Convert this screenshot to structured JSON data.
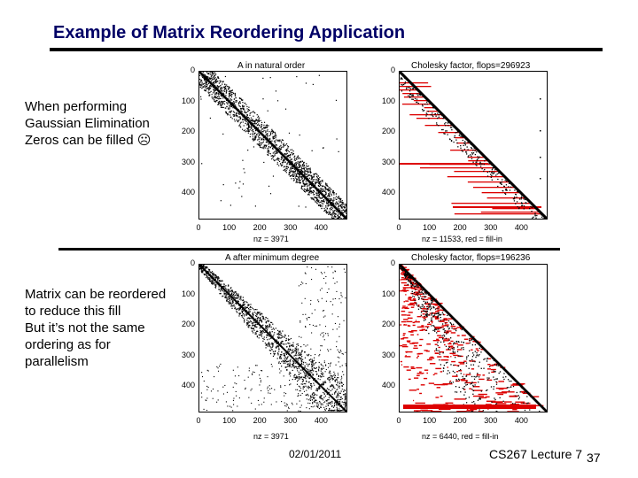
{
  "slide": {
    "title": "Example of Matrix Reordering Application",
    "bullet1": [
      "When performing",
      "Gaussian Elimination",
      "Zeros can be filled ☹"
    ],
    "bullet2": [
      "Matrix can be reordered",
      "to reduce this fill",
      "But it’s not the same",
      "ordering as for",
      "parallelism"
    ],
    "footer_date": "02/01/2011",
    "footer_lecture": "CS267 Lecture 7",
    "slide_number": "37"
  },
  "plots": [
    {
      "title": "A in natural order",
      "xlabel": "nz = 3971"
    },
    {
      "title": "Cholesky factor, flops=296923",
      "xlabel": "nz = 11533,    red = fill-in"
    },
    {
      "title": "A after minimum degree",
      "xlabel": "nz = 3971"
    },
    {
      "title": "Cholesky factor, flops=196236",
      "xlabel": "nz = 6440,    red = fill-in"
    }
  ],
  "axis_ticks": {
    "y": [
      "0",
      "100",
      "200",
      "300",
      "400"
    ],
    "x": [
      "0",
      "100",
      "200",
      "300",
      "400"
    ]
  },
  "colors": {
    "title": "#000066",
    "fill_in": "#dd0000",
    "nonzero": "#000000"
  }
}
